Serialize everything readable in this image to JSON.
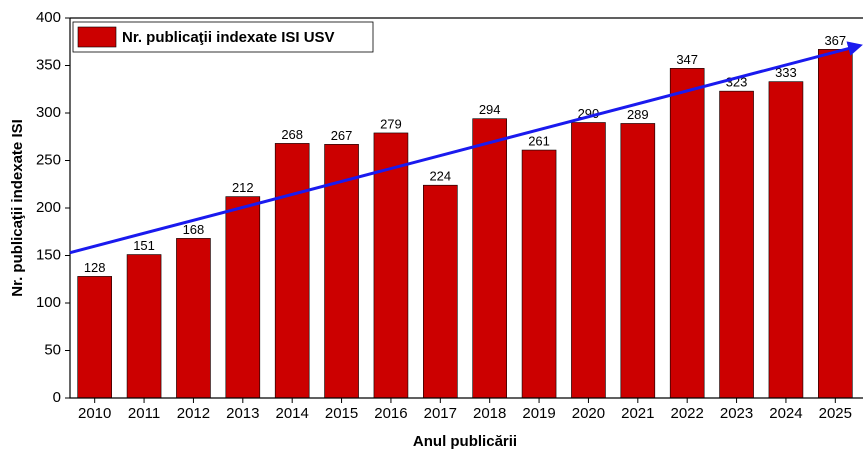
{
  "chart_data": {
    "type": "bar",
    "x_label": "Anul publicării",
    "y_label": "Nr. publicaţii indexate ISI",
    "categories": [
      "2010",
      "2011",
      "2012",
      "2013",
      "2014",
      "2015",
      "2016",
      "2017",
      "2018",
      "2019",
      "2020",
      "2021",
      "2022",
      "2023",
      "2024",
      "2025"
    ],
    "series": [
      {
        "name": "Nr. publicaţii indexate ISI USV",
        "color": "#cc0000",
        "values": [
          128,
          151,
          168,
          212,
          268,
          267,
          279,
          224,
          294,
          261,
          290,
          289,
          347,
          323,
          333,
          367
        ]
      }
    ],
    "trendline": {
      "color": "#1a1aee",
      "start": 153,
      "end": 371
    },
    "ylim": [
      0,
      400
    ],
    "yticks": [
      0,
      50,
      100,
      150,
      200,
      250,
      300,
      350,
      400
    ],
    "legend": "top-left"
  }
}
